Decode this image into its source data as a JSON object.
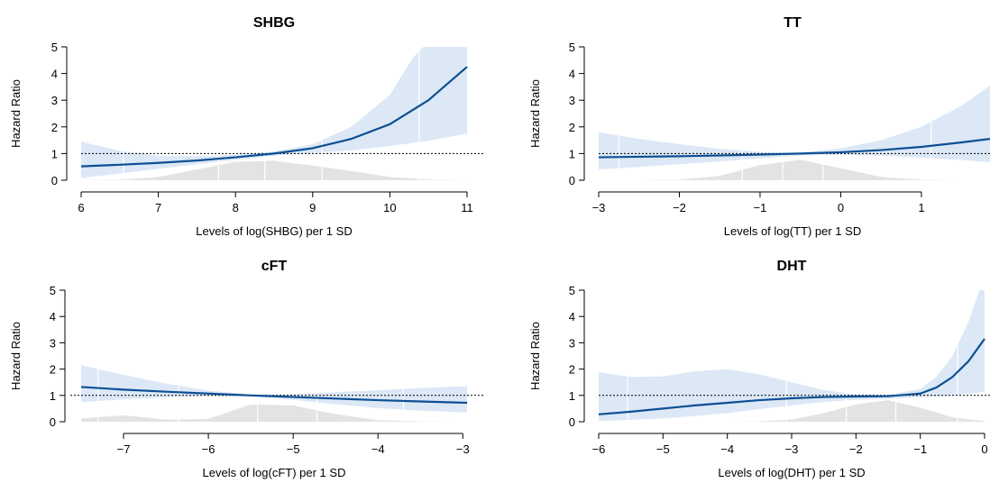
{
  "colors": {
    "line": "#0d4f94",
    "ci_band": "#dce8f6",
    "density": "#e3e3e3",
    "reference": "#000000",
    "axis": "#000000"
  },
  "chart_data": [
    {
      "type": "line",
      "title": "SHBG",
      "xlabel": "Levels of log(SHBG) per 1 SD",
      "ylabel": "Hazard Ratio",
      "xlim": [
        6,
        11
      ],
      "ylim": [
        0,
        5
      ],
      "xticks": [
        6,
        7,
        8,
        9,
        10,
        11
      ],
      "xtick_labels": [
        "6",
        "7",
        "8",
        "9",
        "10",
        "11"
      ],
      "yticks": [
        0,
        1,
        2,
        3,
        4,
        5
      ],
      "ytick_labels": [
        "0",
        "1",
        "2",
        "3",
        "4",
        "5"
      ],
      "reference_line": 1,
      "series": [
        {
          "x": [
            6,
            6.5,
            7,
            7.5,
            8,
            8.5,
            9,
            9.5,
            10,
            10.5,
            11
          ],
          "y": [
            0.52,
            0.58,
            0.65,
            0.74,
            0.86,
            1.0,
            1.2,
            1.55,
            2.1,
            3.0,
            4.25
          ]
        }
      ],
      "ci": {
        "x": [
          6,
          6.5,
          7,
          7.5,
          8,
          8.5,
          9,
          9.5,
          10,
          10.3,
          10.5,
          11
        ],
        "lower": [
          0.08,
          0.25,
          0.43,
          0.6,
          0.76,
          0.92,
          1.02,
          1.12,
          1.28,
          1.4,
          1.48,
          1.75
        ],
        "upper": [
          1.45,
          1.1,
          0.92,
          0.9,
          0.96,
          1.08,
          1.35,
          2.0,
          3.2,
          4.6,
          5.2,
          5.2
        ]
      },
      "density": {
        "x": [
          6,
          6.5,
          7,
          7.5,
          8,
          8.5,
          9,
          9.5,
          10,
          10.5,
          11
        ],
        "y": [
          0,
          0.01,
          0.06,
          0.2,
          0.34,
          0.36,
          0.27,
          0.17,
          0.06,
          0.01,
          0
        ]
      },
      "percentile_marks": [
        6.55,
        7.78,
        8.38,
        9.12,
        10.38
      ]
    },
    {
      "type": "line",
      "title": "TT",
      "xlabel": "Levels of log(TT) per 1 SD",
      "ylabel": "Hazard Ratio",
      "xlim": [
        -3,
        1.85
      ],
      "ylim": [
        0,
        5
      ],
      "xticks": [
        -3,
        -2,
        -1,
        0,
        1
      ],
      "xtick_labels": [
        "−3",
        "−2",
        "−1",
        "0",
        "1"
      ],
      "yticks": [
        0,
        1,
        2,
        3,
        4,
        5
      ],
      "ytick_labels": [
        "0",
        "1",
        "2",
        "3",
        "4",
        "5"
      ],
      "reference_line": 1,
      "series": [
        {
          "x": [
            -3,
            -2.5,
            -2,
            -1.5,
            -1,
            -0.5,
            0,
            0.5,
            1,
            1.5,
            1.85
          ],
          "y": [
            0.86,
            0.88,
            0.9,
            0.93,
            0.96,
            1.0,
            1.05,
            1.13,
            1.25,
            1.42,
            1.55
          ]
        }
      ],
      "ci": {
        "x": [
          -3,
          -2.5,
          -2,
          -1.5,
          -1,
          -0.5,
          0,
          0.5,
          1,
          1.5,
          1.85
        ],
        "lower": [
          0.4,
          0.5,
          0.6,
          0.7,
          0.82,
          0.93,
          0.96,
          0.92,
          0.85,
          0.76,
          0.68
        ],
        "upper": [
          1.8,
          1.55,
          1.35,
          1.18,
          1.06,
          1.03,
          1.2,
          1.5,
          2.0,
          2.8,
          3.55
        ]
      },
      "density": {
        "x": [
          -3,
          -2.5,
          -2,
          -1.5,
          -1,
          -0.5,
          0,
          0.5,
          1,
          1.5,
          1.85
        ],
        "y": [
          0,
          0,
          0.01,
          0.08,
          0.28,
          0.38,
          0.22,
          0.06,
          0.01,
          0,
          0
        ]
      },
      "percentile_marks": [
        -2.75,
        -1.22,
        -0.72,
        -0.22,
        1.12
      ]
    },
    {
      "type": "line",
      "title": "cFT",
      "xlabel": "Levels of log(cFT) per 1 SD",
      "ylabel": "Hazard Ratio",
      "xlim": [
        -7.5,
        -2.95
      ],
      "ylim": [
        0,
        5
      ],
      "xticks": [
        -7,
        -6,
        -5,
        -4,
        -3
      ],
      "xtick_labels": [
        "−7",
        "−6",
        "−5",
        "−4",
        "−3"
      ],
      "yticks": [
        0,
        1,
        2,
        3,
        4,
        5
      ],
      "ytick_labels": [
        "0",
        "1",
        "2",
        "3",
        "4",
        "5"
      ],
      "reference_line": 1,
      "series": [
        {
          "x": [
            -7.5,
            -7,
            -6.5,
            -6,
            -5.5,
            -5,
            -4.5,
            -4,
            -3.5,
            -2.95
          ],
          "y": [
            1.32,
            1.22,
            1.14,
            1.07,
            1.0,
            0.94,
            0.88,
            0.82,
            0.77,
            0.72
          ]
        }
      ],
      "ci": {
        "x": [
          -7.5,
          -7,
          -6.5,
          -6,
          -5.5,
          -5,
          -4.5,
          -4,
          -3.5,
          -2.95
        ],
        "lower": [
          0.75,
          0.85,
          0.93,
          0.98,
          0.97,
          0.83,
          0.66,
          0.52,
          0.42,
          0.35
        ],
        "upper": [
          2.15,
          1.78,
          1.45,
          1.18,
          1.03,
          1.05,
          1.12,
          1.2,
          1.28,
          1.35
        ]
      },
      "density": {
        "x": [
          -7.5,
          -7,
          -6.5,
          -6,
          -5.5,
          -5,
          -4.5,
          -4,
          -3.5,
          -2.95
        ],
        "y": [
          0.06,
          0.12,
          0.04,
          0.05,
          0.32,
          0.3,
          0.14,
          0.03,
          0.005,
          0
        ]
      },
      "percentile_marks": [
        -7.3,
        -6.35,
        -5.42,
        -4.72,
        -3.7
      ]
    },
    {
      "type": "line",
      "title": "DHT",
      "xlabel": "Levels of log(DHT) per 1 SD",
      "ylabel": "Hazard Ratio",
      "xlim": [
        -6,
        0
      ],
      "ylim": [
        0,
        5
      ],
      "xticks": [
        -6,
        -5,
        -4,
        -3,
        -2,
        -1,
        0
      ],
      "xtick_labels": [
        "−6",
        "−5",
        "−4",
        "−3",
        "−2",
        "−1",
        "0"
      ],
      "yticks": [
        0,
        1,
        2,
        3,
        4,
        5
      ],
      "ytick_labels": [
        "0",
        "1",
        "2",
        "3",
        "4",
        "5"
      ],
      "reference_line": 1,
      "series": [
        {
          "x": [
            -6,
            -5.5,
            -5,
            -4.5,
            -4,
            -3.5,
            -3,
            -2.5,
            -2,
            -1.5,
            -1,
            -0.75,
            -0.5,
            -0.25,
            0
          ],
          "y": [
            0.28,
            0.38,
            0.5,
            0.62,
            0.72,
            0.82,
            0.89,
            0.94,
            0.96,
            0.97,
            1.07,
            1.3,
            1.7,
            2.3,
            3.15
          ]
        }
      ],
      "ci": {
        "x": [
          -6,
          -5.5,
          -5,
          -4.5,
          -4,
          -3.5,
          -3,
          -2.5,
          -2,
          -1.5,
          -1,
          -0.75,
          -0.5,
          -0.25,
          -0.05,
          0
        ],
        "lower": [
          0.03,
          0.07,
          0.13,
          0.22,
          0.33,
          0.48,
          0.62,
          0.75,
          0.83,
          0.87,
          0.93,
          0.96,
          1.0,
          1.06,
          1.12,
          1.15
        ],
        "upper": [
          1.88,
          1.7,
          1.72,
          1.92,
          2.0,
          1.8,
          1.5,
          1.2,
          1.05,
          1.02,
          1.25,
          1.7,
          2.5,
          3.8,
          5.2,
          5.2
        ]
      },
      "density": {
        "x": [
          -6,
          -5,
          -4,
          -3.5,
          -3,
          -2.5,
          -2,
          -1.5,
          -1,
          -0.5,
          0
        ],
        "y": [
          0,
          0,
          0,
          0.005,
          0.04,
          0.16,
          0.32,
          0.4,
          0.26,
          0.08,
          0.01
        ]
      },
      "percentile_marks": [
        -5.55,
        -3.08,
        -2.15,
        -1.38,
        -0.42
      ]
    }
  ]
}
